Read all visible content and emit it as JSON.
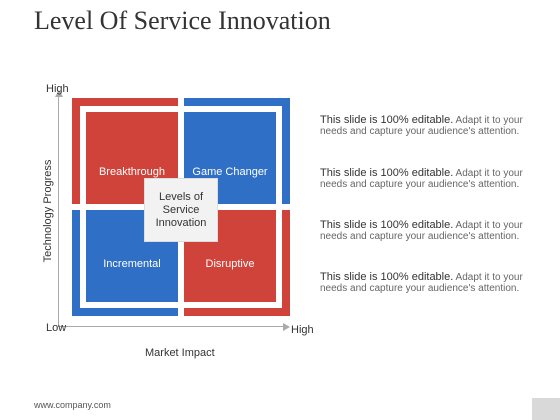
{
  "title": "Level Of Service Innovation",
  "diagram": {
    "y_axis_label": "Technology Progress",
    "x_axis_label": "Market Impact",
    "y_high": "High",
    "x_low": "Low",
    "x_high": "High",
    "center_label": "Levels of Service Innovation",
    "quadrants": [
      {
        "label": "Breakthrough",
        "color": "#d0433a"
      },
      {
        "label": "Game Changer",
        "color": "#2f6fc5"
      },
      {
        "label": "Incremental",
        "color": "#2f6fc5"
      },
      {
        "label": "Disruptive",
        "color": "#d0433a"
      }
    ]
  },
  "descriptions": [
    {
      "strong": "This slide is 100% editable.",
      "rest": "Adapt it to your needs and capture your audience's attention."
    },
    {
      "strong": "This slide is 100% editable.",
      "rest": "Adapt it to your needs and capture your audience's attention."
    },
    {
      "strong": "This slide is 100% editable.",
      "rest": "Adapt it to your needs and capture your audience's attention."
    },
    {
      "strong": "This slide is 100% editable.",
      "rest": "Adapt it to your needs and capture your audience's attention."
    }
  ],
  "footer": "www.company.com"
}
